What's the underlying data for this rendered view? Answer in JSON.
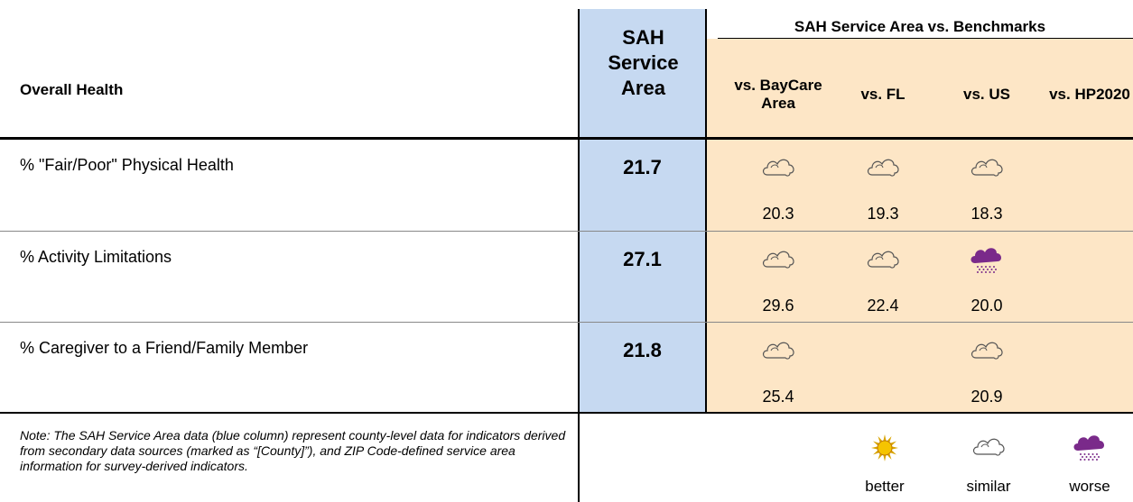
{
  "header": {
    "row_label": "Overall Health",
    "primary_column": "SAH Service Area",
    "group": "SAH Service Area vs. Benchmarks",
    "benchmarks": [
      "vs. BayCare Area",
      "vs. FL",
      "vs. US",
      "vs. HP2020"
    ]
  },
  "rows": [
    {
      "label": "% \"Fair/Poor\" Physical Health",
      "value": "21.7",
      "benchmarks": [
        {
          "rating": "similar",
          "value": "20.3"
        },
        {
          "rating": "similar",
          "value": "19.3"
        },
        {
          "rating": "similar",
          "value": "18.3"
        },
        null
      ]
    },
    {
      "label": "% Activity Limitations",
      "value": "27.1",
      "benchmarks": [
        {
          "rating": "similar",
          "value": "29.6"
        },
        {
          "rating": "similar",
          "value": "22.4"
        },
        {
          "rating": "worse",
          "value": "20.0"
        },
        null
      ]
    },
    {
      "label": "% Caregiver to a Friend/Family Member",
      "value": "21.8",
      "benchmarks": [
        {
          "rating": "similar",
          "value": "25.4"
        },
        null,
        {
          "rating": "similar",
          "value": "20.9"
        },
        null
      ]
    }
  ],
  "note": "Note: The SAH Service Area data (blue column) represent county-level data for indicators derived from secondary data sources (marked as “[County]”), and ZIP Code-defined service area information for survey-derived indicators.",
  "legend": [
    "better",
    "similar",
    "worse"
  ]
}
